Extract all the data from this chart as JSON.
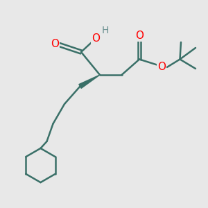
{
  "background_color": "#e8e8e8",
  "bond_color": "#3a7068",
  "atom_colors": {
    "O": "#ff0000",
    "H": "#6a9090",
    "C": "#3a7068"
  },
  "figsize": [
    3.0,
    3.0
  ],
  "dpi": 100,
  "xlim": [
    0,
    10
  ],
  "ylim": [
    0,
    10
  ]
}
